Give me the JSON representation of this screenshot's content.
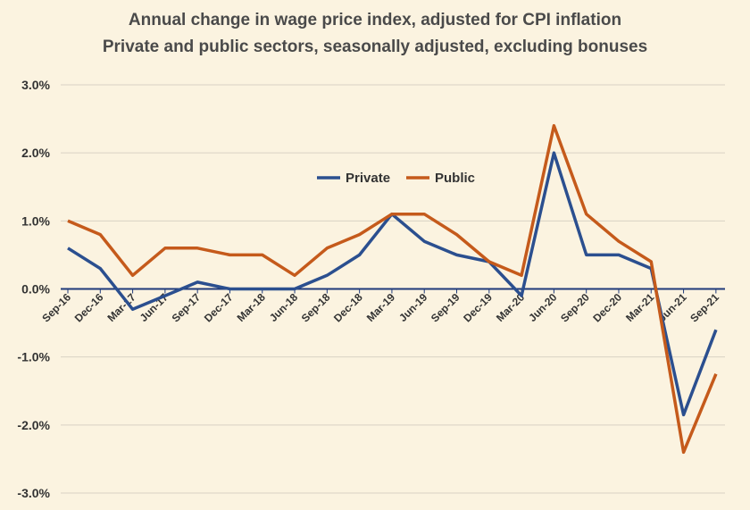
{
  "chart_data": {
    "type": "line",
    "title": "Annual change in wage price index, adjusted for CPI inflation",
    "subtitle": "Private and public sectors, seasonally adjusted, excluding bonuses",
    "xlabel": "",
    "ylabel": "",
    "categories": [
      "Sep-16",
      "Dec-16",
      "Mar-17",
      "Jun-17",
      "Sep-17",
      "Dec-17",
      "Mar-18",
      "Jun-18",
      "Sep-18",
      "Dec-18",
      "Mar-19",
      "Jun-19",
      "Sep-19",
      "Dec-19",
      "Mar-20",
      "Jun-20",
      "Sep-20",
      "Dec-20",
      "Mar-21",
      "Jun-21",
      "Sep-21"
    ],
    "ylim": [
      -3.0,
      3.0
    ],
    "yticks": [
      3.0,
      2.0,
      1.0,
      0.0,
      -1.0,
      -2.0,
      -3.0
    ],
    "ytick_labels": [
      "3.0%",
      "2.0%",
      "1.0%",
      "0.0%",
      "-1.0%",
      "-2.0%",
      "-3.0%"
    ],
    "grid": true,
    "legend_position": "inside-top-center",
    "series": [
      {
        "name": "Private",
        "color": "#2b4f8f",
        "values": [
          0.6,
          0.3,
          -0.3,
          -0.1,
          0.1,
          0.0,
          0.0,
          0.0,
          0.2,
          0.5,
          1.1,
          0.7,
          0.5,
          0.4,
          -0.1,
          2.0,
          0.5,
          0.5,
          0.3,
          -1.85,
          -0.6
        ]
      },
      {
        "name": "Public",
        "color": "#c55a1b",
        "values": [
          1.0,
          0.8,
          0.2,
          0.6,
          0.6,
          0.5,
          0.5,
          0.2,
          0.6,
          0.8,
          1.1,
          1.1,
          0.8,
          0.4,
          0.2,
          2.4,
          1.1,
          0.7,
          0.4,
          -2.4,
          -1.25
        ]
      }
    ],
    "colors": {
      "axis": "#1f3a7a",
      "grid": "#d9d2c4",
      "background": "#fbf3e0"
    }
  }
}
